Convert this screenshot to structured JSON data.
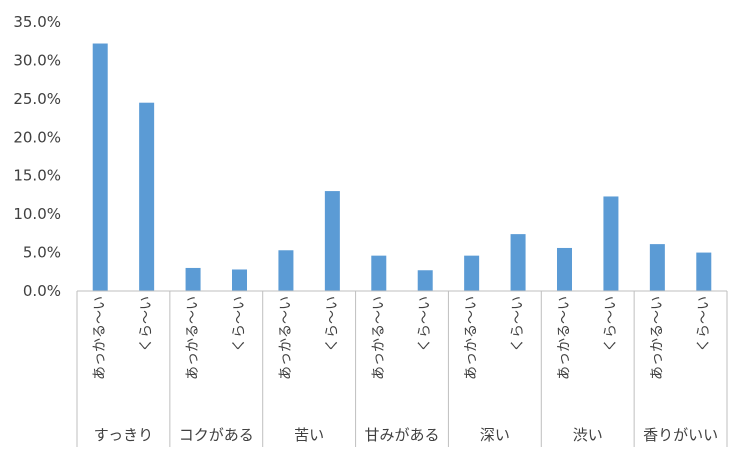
{
  "chart_data": {
    "type": "bar",
    "title": "",
    "xlabel": "",
    "ylabel": "",
    "ylim": [
      0,
      0.35
    ],
    "y_ticks": [
      "0.0%",
      "5.0%",
      "10.0%",
      "15.0%",
      "20.0%",
      "25.0%",
      "30.0%",
      "35.0%"
    ],
    "grid": false,
    "legend": "none",
    "bar_color": "#5b9bd5",
    "groups": [
      {
        "label": "すっきり",
        "subcategories": [
          "あっかる〜い",
          "くら〜い"
        ],
        "values": [
          0.322,
          0.245
        ]
      },
      {
        "label": "コクがある",
        "subcategories": [
          "あっかる〜い",
          "くら〜い"
        ],
        "values": [
          0.03,
          0.028
        ]
      },
      {
        "label": "苦い",
        "subcategories": [
          "あっかる〜い",
          "くら〜い"
        ],
        "values": [
          0.053,
          0.13
        ]
      },
      {
        "label": "甘みがある",
        "subcategories": [
          "あっかる〜い",
          "くら〜い"
        ],
        "values": [
          0.046,
          0.027
        ]
      },
      {
        "label": "深い",
        "subcategories": [
          "あっかる〜い",
          "くら〜い"
        ],
        "values": [
          0.046,
          0.074
        ]
      },
      {
        "label": "渋い",
        "subcategories": [
          "あっかる〜い",
          "くら〜い"
        ],
        "values": [
          0.056,
          0.123
        ]
      },
      {
        "label": "香りがいい",
        "subcategories": [
          "あっかる〜い",
          "くら〜い"
        ],
        "values": [
          0.061,
          0.05
        ]
      }
    ]
  }
}
